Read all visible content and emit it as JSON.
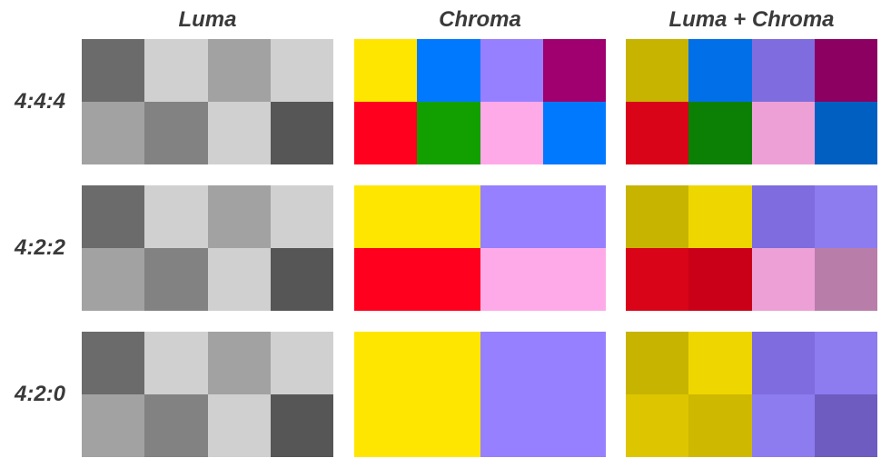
{
  "columns": [
    "Luma",
    "Chroma",
    "Luma + Chroma"
  ],
  "rows": [
    {
      "label": "4:4:4",
      "luma": [
        [
          "#6b6b6b",
          "#d0d0d0",
          "#a2a2a2",
          "#d0d0d0"
        ],
        [
          "#a2a2a2",
          "#828282",
          "#d0d0d0",
          "#565656"
        ]
      ],
      "chroma": [
        [
          "#ffe600",
          "#0079ff",
          "#9680ff",
          "#a0006f"
        ],
        [
          "#ff001e",
          "#12a000",
          "#ffaae8",
          "#0079ff"
        ]
      ],
      "combined": [
        [
          "#c6b400",
          "#006fe8",
          "#7f6cdf",
          "#8c0062"
        ],
        [
          "#d90418",
          "#0c8005",
          "#eda0d6",
          "#005fc0"
        ]
      ]
    },
    {
      "label": "4:2:2",
      "luma": [
        [
          "#6b6b6b",
          "#d0d0d0",
          "#a2a2a2",
          "#d0d0d0"
        ],
        [
          "#a2a2a2",
          "#828282",
          "#d0d0d0",
          "#565656"
        ]
      ],
      "chroma": [
        [
          "#ffe600",
          "#ffe600",
          "#9680ff",
          "#9680ff"
        ],
        [
          "#ff001e",
          "#ff001e",
          "#ffaae8",
          "#ffaae8"
        ]
      ],
      "combined": [
        [
          "#c6b400",
          "#eed600",
          "#7f6cdf",
          "#8c7cf0"
        ],
        [
          "#d90418",
          "#ca0018",
          "#eda0d6",
          "#b97daa"
        ]
      ]
    },
    {
      "label": "4:2:0",
      "luma": [
        [
          "#6b6b6b",
          "#d0d0d0",
          "#a2a2a2",
          "#d0d0d0"
        ],
        [
          "#a2a2a2",
          "#828282",
          "#d0d0d0",
          "#565656"
        ]
      ],
      "chroma": [
        [
          "#ffe600",
          "#ffe600",
          "#9680ff",
          "#9680ff"
        ],
        [
          "#ffe600",
          "#ffe600",
          "#9680ff",
          "#9680ff"
        ]
      ],
      "combined": [
        [
          "#c6b400",
          "#eed600",
          "#7f6cdf",
          "#8c7cf0"
        ],
        [
          "#ddc600",
          "#cfb800",
          "#8c7cf0",
          "#6f5cc0"
        ]
      ]
    }
  ]
}
